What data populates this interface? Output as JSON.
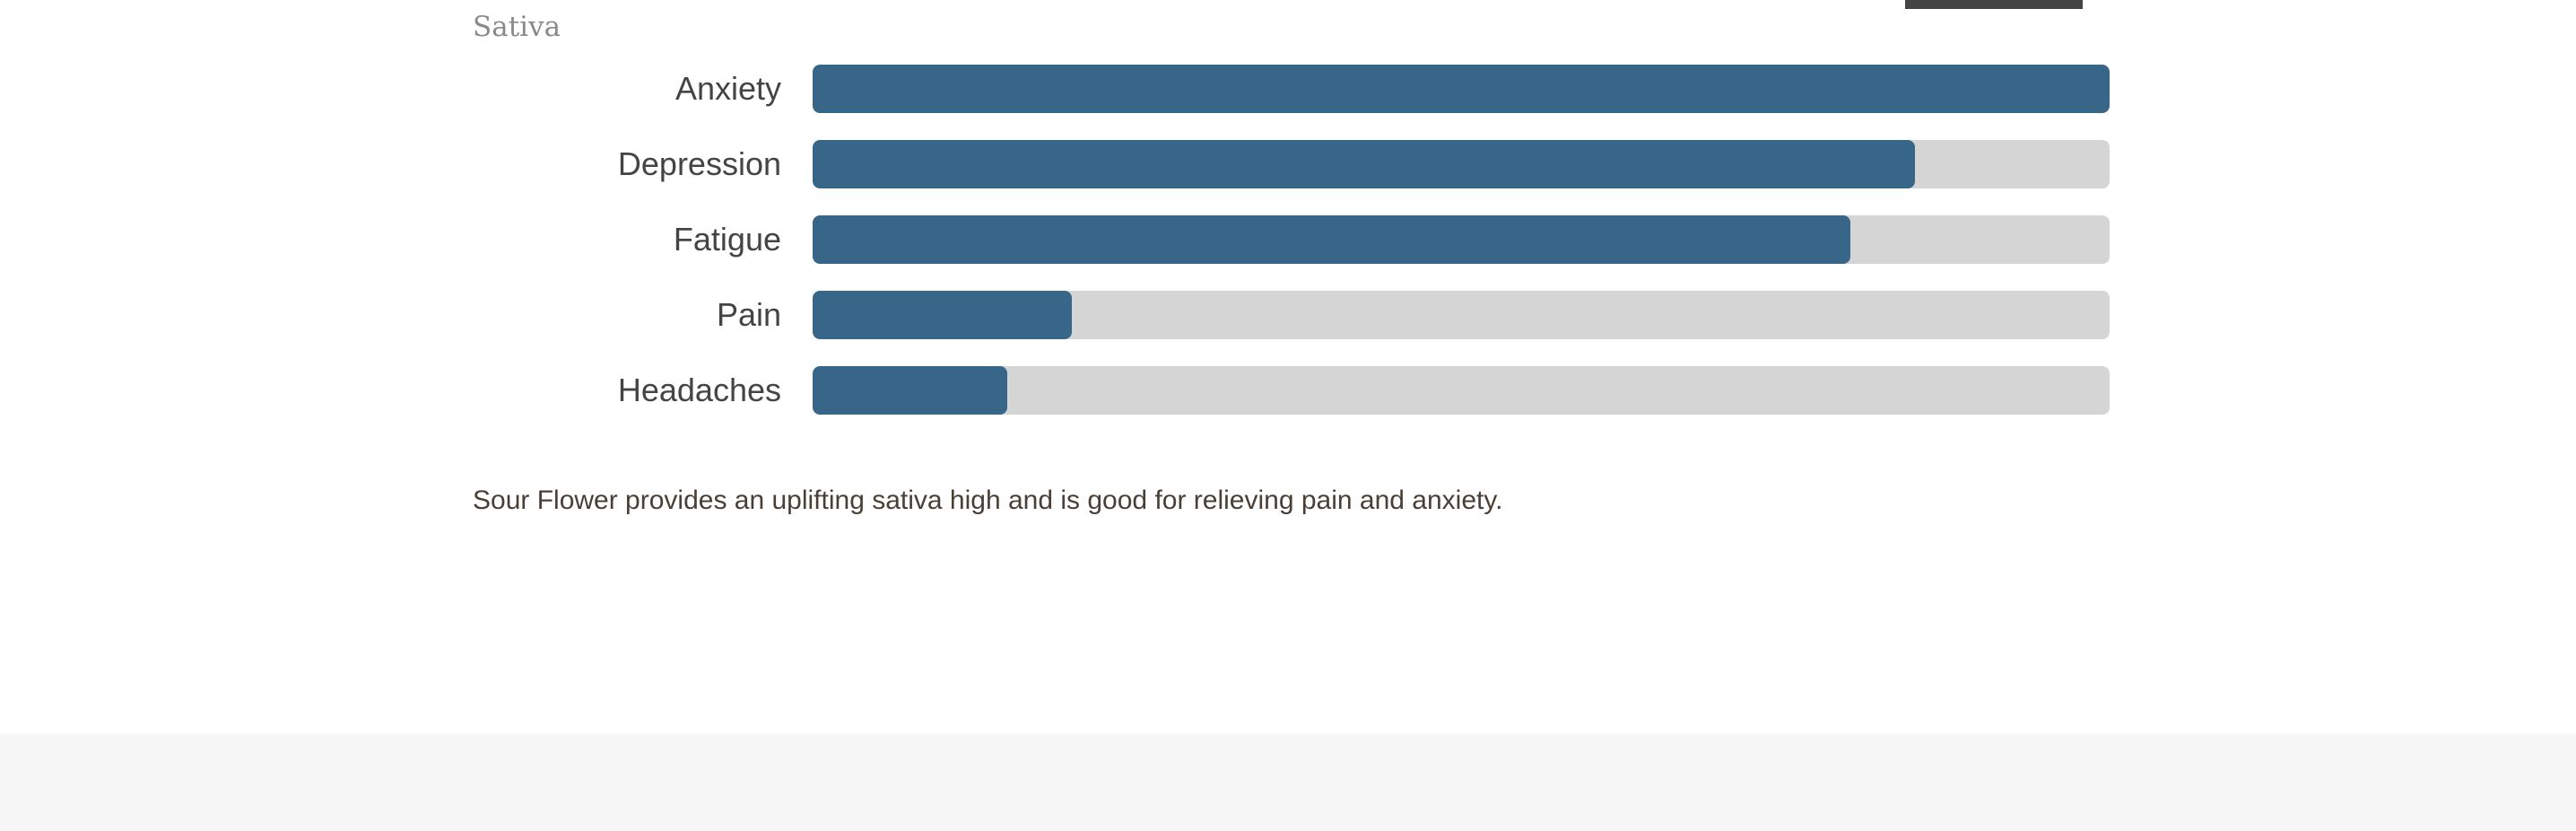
{
  "strain": {
    "type": "Sativa",
    "description": "Sour Flower provides an uplifting sativa high and is good for relieving pain and anxiety."
  },
  "effects": [
    {
      "label": "Anxiety",
      "level": 1.0
    },
    {
      "label": "Depression",
      "level": 0.85
    },
    {
      "label": "Fatigue",
      "level": 0.8
    },
    {
      "label": "Pain",
      "level": 0.2
    },
    {
      "label": "Headaches",
      "level": 0.15
    }
  ],
  "colors": {
    "bar_fill": "#386689",
    "bar_track": "#d5d5d5"
  }
}
